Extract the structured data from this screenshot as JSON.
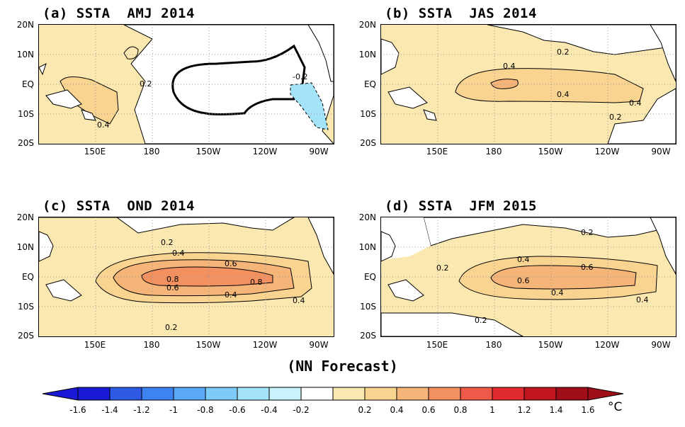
{
  "panels": [
    {
      "title": "(a) SSTA  AMJ 2014"
    },
    {
      "title": "(b) SSTA  JAS 2014"
    },
    {
      "title": "(c) SSTA  OND 2014"
    },
    {
      "title": "(d) SSTA  JFM 2015"
    }
  ],
  "lat_labels": [
    "20N",
    "10N",
    "EQ",
    "10S",
    "20S"
  ],
  "lon_labels": [
    "150E",
    "180",
    "150W",
    "120W",
    "90W"
  ],
  "contour_labels": {
    "a": [
      "0.2",
      "-0.2",
      "0.4"
    ],
    "b": [
      "0.2",
      "0.4",
      "0.4",
      "0.4",
      "0.2"
    ],
    "c": [
      "0.2",
      "0.4",
      "0.6",
      "0.8",
      "0.8",
      "0.6",
      "0.4",
      "0.4",
      "0.2"
    ],
    "d": [
      "0.2",
      "0.2",
      "0.4",
      "0.6",
      "0.6",
      "0.4",
      "0.4",
      "0.2"
    ]
  },
  "footer": "(NN Forecast)",
  "colorbar": {
    "labels": [
      "-1.6",
      "-1.4",
      "-1.2",
      "-1",
      "-0.8",
      "-0.6",
      "-0.4",
      "-0.2",
      "0.2",
      "0.4",
      "0.6",
      "0.8",
      "1",
      "1.2",
      "1.4",
      "1.6"
    ],
    "unit": "°C",
    "colors": [
      "#1a1ad6",
      "#2f5ae6",
      "#3d84f0",
      "#5aa8f7",
      "#7ecbfa",
      "#a3e4fb",
      "#c9f3fb",
      "#ffffff",
      "#fbe8b0",
      "#f8d490",
      "#f5b478",
      "#f29060",
      "#ed5a48",
      "#e02a30",
      "#c0141e",
      "#a00f18"
    ]
  },
  "colors": {
    "weak_warm": "#fbe8b0",
    "mod_warm": "#f8d490",
    "warm_06": "#f5b478",
    "warm_08": "#f29060",
    "weak_cool": "#a3e4fb"
  }
}
